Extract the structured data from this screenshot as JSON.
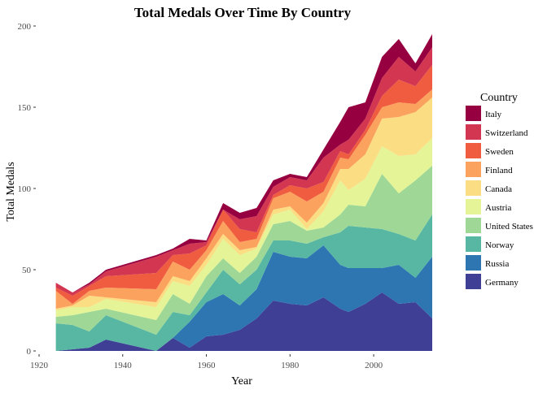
{
  "chart_data": {
    "type": "area",
    "stacked": true,
    "title": "Total Medals Over Time By Country",
    "xlabel": "Year",
    "ylabel": "Total Medals",
    "xlim": [
      1920,
      2014
    ],
    "ylim": [
      0,
      200
    ],
    "x_ticks": [
      1920,
      1940,
      1960,
      1980,
      2000
    ],
    "y_ticks": [
      0,
      50,
      100,
      150,
      200
    ],
    "grid": false,
    "legend_title": "Country",
    "legend_position": "right",
    "x": [
      1924,
      1928,
      1932,
      1936,
      1948,
      1952,
      1956,
      1960,
      1964,
      1968,
      1972,
      1976,
      1980,
      1984,
      1988,
      1992,
      1994,
      1998,
      2002,
      2006,
      2010,
      2014
    ],
    "series": [
      {
        "name": "Germany",
        "color": "#3f3f96",
        "values": [
          0,
          1,
          2,
          7,
          0,
          8,
          2,
          9,
          10,
          13,
          20,
          31,
          29,
          28,
          33,
          26,
          24,
          29,
          36,
          29,
          30,
          20
        ]
      },
      {
        "name": "Russia",
        "color": "#2d76b2",
        "values": [
          0,
          0,
          0,
          0,
          0,
          0,
          16,
          21,
          25,
          15,
          18,
          30,
          29,
          29,
          32,
          27,
          27,
          22,
          15,
          24,
          15,
          38
        ]
      },
      {
        "name": "Norway",
        "color": "#58b7a3",
        "values": [
          17,
          15,
          10,
          15,
          10,
          16,
          4,
          6,
          15,
          13,
          12,
          7,
          10,
          9,
          5,
          20,
          26,
          25,
          24,
          19,
          23,
          26
        ]
      },
      {
        "name": "United States",
        "color": "#9fd896",
        "values": [
          4,
          6,
          12,
          4,
          9,
          11,
          7,
          10,
          7,
          7,
          8,
          10,
          12,
          8,
          6,
          11,
          13,
          13,
          34,
          25,
          37,
          30
        ]
      },
      {
        "name": "Austria",
        "color": "#e4f497",
        "values": [
          4,
          5,
          3,
          6,
          8,
          8,
          11,
          7,
          12,
          11,
          5,
          6,
          7,
          1,
          10,
          21,
          9,
          17,
          17,
          23,
          16,
          17
        ]
      },
      {
        "name": "Canada",
        "color": "#fbdd83",
        "values": [
          1,
          1,
          7,
          1,
          3,
          3,
          3,
          4,
          3,
          3,
          1,
          3,
          2,
          4,
          5,
          7,
          13,
          15,
          17,
          24,
          26,
          25
        ]
      },
      {
        "name": "Finland",
        "color": "#fba25e",
        "values": [
          11,
          1,
          3,
          6,
          8,
          9,
          7,
          5,
          8,
          5,
          5,
          7,
          9,
          13,
          7,
          7,
          6,
          12,
          7,
          9,
          5,
          5
        ]
      },
      {
        "name": "Sweden",
        "color": "#ef5c3f",
        "values": [
          2,
          5,
          3,
          7,
          10,
          4,
          10,
          3,
          7,
          8,
          4,
          2,
          4,
          8,
          6,
          4,
          3,
          3,
          7,
          14,
          11,
          15
        ]
      },
      {
        "name": "Switzerland",
        "color": "#d33651",
        "values": [
          3,
          2,
          1,
          3,
          10,
          3,
          6,
          2,
          0,
          6,
          10,
          5,
          5,
          5,
          15,
          4,
          9,
          7,
          11,
          14,
          9,
          11
        ]
      },
      {
        "name": "Italy",
        "color": "#960040",
        "values": [
          0,
          0,
          1,
          1,
          1,
          1,
          3,
          1,
          4,
          4,
          5,
          4,
          2,
          2,
          5,
          14,
          20,
          10,
          13,
          11,
          5,
          8
        ]
      }
    ]
  }
}
